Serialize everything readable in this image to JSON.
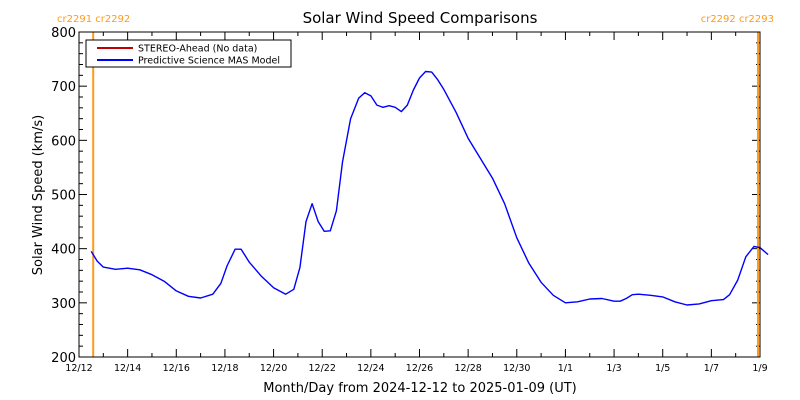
{
  "chart_data": {
    "type": "line",
    "title": "Solar Wind Speed Comparisons",
    "xlabel": "Month/Day from 2024-12-12 to 2025-01-09 (UT)",
    "ylabel": "Solar Wind Speed (km/s)",
    "xlim": [
      "2024-12-12",
      "2025-01-09"
    ],
    "ylim": [
      200,
      800
    ],
    "y_ticks": [
      200,
      300,
      400,
      500,
      600,
      700,
      800
    ],
    "x_tick_labels": [
      "12/12",
      "12/14",
      "12/16",
      "12/18",
      "12/20",
      "12/22",
      "12/24",
      "12/26",
      "12/28",
      "12/30",
      "1/1",
      "1/3",
      "1/5",
      "1/7",
      "1/9"
    ],
    "x_tick_dates": [
      "2024-12-12",
      "2024-12-14",
      "2024-12-16",
      "2024-12-18",
      "2024-12-20",
      "2024-12-22",
      "2024-12-24",
      "2024-12-26",
      "2024-12-28",
      "2024-12-30",
      "2025-01-01",
      "2025-01-03",
      "2025-01-05",
      "2025-01-07",
      "2025-01-09"
    ],
    "legend": {
      "placement": "top-left",
      "entries": [
        {
          "label": "STEREO-Ahead (No data)",
          "color": "#c00000"
        },
        {
          "label": "Predictive Science MAS Model",
          "color": "#0000ff"
        }
      ]
    },
    "series": [
      {
        "name": "Predictive Science MAS Model",
        "color": "#0000ff",
        "points": [
          [
            "2024-12-12 12:00",
            395
          ],
          [
            "2024-12-12 18:00",
            377
          ],
          [
            "2024-12-13 00:00",
            366
          ],
          [
            "2024-12-13 12:00",
            362
          ],
          [
            "2024-12-14 00:00",
            364
          ],
          [
            "2024-12-14 12:00",
            361
          ],
          [
            "2024-12-15 00:00",
            352
          ],
          [
            "2024-12-15 12:00",
            340
          ],
          [
            "2024-12-16 00:00",
            322
          ],
          [
            "2024-12-16 12:00",
            312
          ],
          [
            "2024-12-17 00:00",
            309
          ],
          [
            "2024-12-17 12:00",
            316
          ],
          [
            "2024-12-17 20:00",
            336
          ],
          [
            "2024-12-18 02:00",
            368
          ],
          [
            "2024-12-18 10:00",
            399
          ],
          [
            "2024-12-18 16:00",
            399
          ],
          [
            "2024-12-19 00:00",
            375
          ],
          [
            "2024-12-19 12:00",
            349
          ],
          [
            "2024-12-20 00:00",
            328
          ],
          [
            "2024-12-20 12:00",
            316
          ],
          [
            "2024-12-20 20:00",
            325
          ],
          [
            "2024-12-21 02:00",
            365
          ],
          [
            "2024-12-21 08:00",
            450
          ],
          [
            "2024-12-21 14:00",
            483
          ],
          [
            "2024-12-21 20:00",
            450
          ],
          [
            "2024-12-22 02:00",
            432
          ],
          [
            "2024-12-22 08:00",
            433
          ],
          [
            "2024-12-22 14:00",
            470
          ],
          [
            "2024-12-22 20:00",
            560
          ],
          [
            "2024-12-23 04:00",
            640
          ],
          [
            "2024-12-23 12:00",
            678
          ],
          [
            "2024-12-23 18:00",
            688
          ],
          [
            "2024-12-24 00:00",
            682
          ],
          [
            "2024-12-24 06:00",
            665
          ],
          [
            "2024-12-24 12:00",
            661
          ],
          [
            "2024-12-24 18:00",
            664
          ],
          [
            "2024-12-25 00:00",
            661
          ],
          [
            "2024-12-25 06:00",
            653
          ],
          [
            "2024-12-25 12:00",
            665
          ],
          [
            "2024-12-25 18:00",
            693
          ],
          [
            "2024-12-26 00:00",
            715
          ],
          [
            "2024-12-26 06:00",
            727
          ],
          [
            "2024-12-26 12:00",
            726
          ],
          [
            "2024-12-26 18:00",
            712
          ],
          [
            "2024-12-27 00:00",
            694
          ],
          [
            "2024-12-27 12:00",
            652
          ],
          [
            "2024-12-28 00:00",
            604
          ],
          [
            "2024-12-28 12:00",
            567
          ],
          [
            "2024-12-29 00:00",
            530
          ],
          [
            "2024-12-29 12:00",
            483
          ],
          [
            "2024-12-30 00:00",
            420
          ],
          [
            "2024-12-30 12:00",
            373
          ],
          [
            "2024-12-31 00:00",
            338
          ],
          [
            "2024-12-31 12:00",
            314
          ],
          [
            "2025-01-01 00:00",
            300
          ],
          [
            "2025-01-01 12:00",
            302
          ],
          [
            "2025-01-02 00:00",
            307
          ],
          [
            "2025-01-02 12:00",
            308
          ],
          [
            "2025-01-03 00:00",
            303
          ],
          [
            "2025-01-03 06:00",
            303
          ],
          [
            "2025-01-03 12:00",
            308
          ],
          [
            "2025-01-03 18:00",
            315
          ],
          [
            "2025-01-04 00:00",
            316
          ],
          [
            "2025-01-04 12:00",
            314
          ],
          [
            "2025-01-05 00:00",
            311
          ],
          [
            "2025-01-05 12:00",
            302
          ],
          [
            "2025-01-06 00:00",
            296
          ],
          [
            "2025-01-06 12:00",
            298
          ],
          [
            "2025-01-07 00:00",
            304
          ],
          [
            "2025-01-07 12:00",
            306
          ],
          [
            "2025-01-07 18:00",
            315
          ],
          [
            "2025-01-08 02:00",
            342
          ],
          [
            "2025-01-08 10:00",
            385
          ],
          [
            "2025-01-08 18:00",
            404
          ],
          [
            "2025-01-09 00:00",
            402
          ],
          [
            "2025-01-09 08:00",
            389
          ]
        ]
      }
    ],
    "markers": [
      {
        "date": "2024-12-12 14:00",
        "label": "cr2291 cr2292",
        "label_side": "left",
        "color": "#ff9a1a"
      },
      {
        "date": "2025-01-08 22:00",
        "label": "cr2292 cr2293",
        "label_side": "right",
        "color": "#ff9a1a"
      }
    ],
    "grid": false
  }
}
